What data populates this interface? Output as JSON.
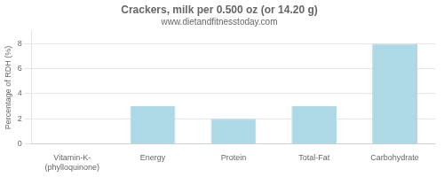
{
  "chart_data": {
    "type": "bar",
    "title": "Crackers, milk per 0.500 oz (or 14.20 g)",
    "subtitle": "www.dietandfitnesstoday.com",
    "categories": [
      "Vitamin-K-(phylloquinone)",
      "Energy",
      "Protein",
      "Total-Fat",
      "Carbohydrate"
    ],
    "values": [
      0,
      3,
      2,
      3,
      8
    ],
    "color": "#add8e6",
    "ylabel": "Percentage of RDH (%)",
    "ylim": [
      0,
      9
    ],
    "yticks": [
      0,
      2,
      4,
      6,
      8
    ],
    "grid": true
  }
}
